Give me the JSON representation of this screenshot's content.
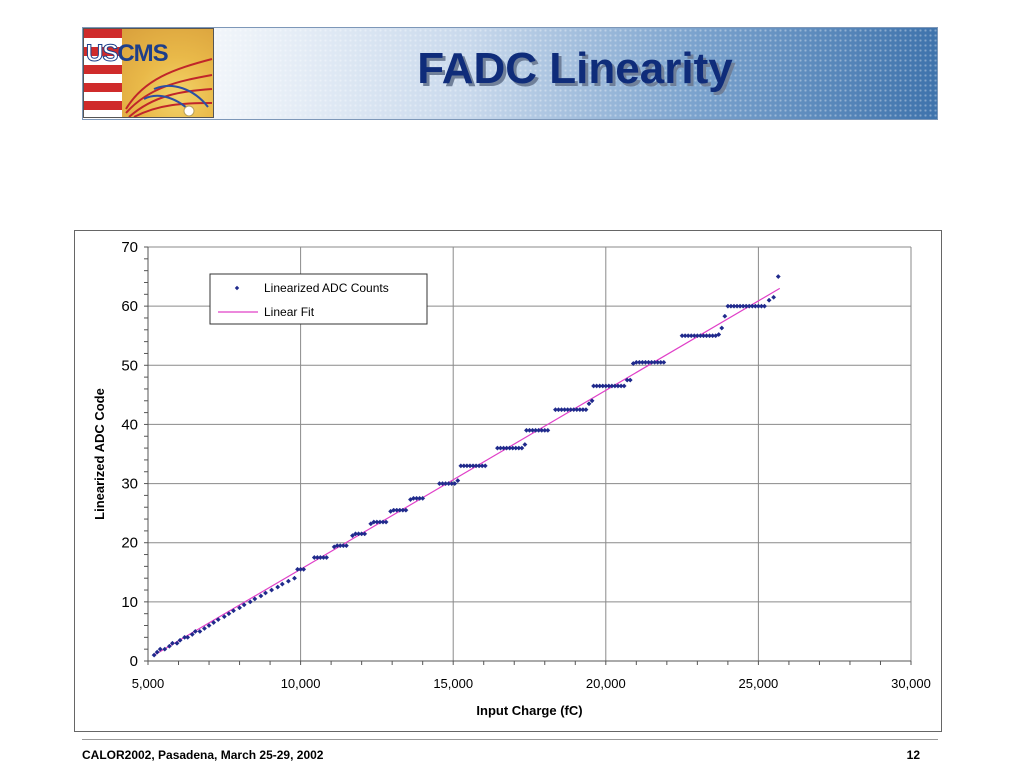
{
  "header": {
    "title": "FADC Linearity",
    "logo_text_a": "US",
    "logo_text_b": "CMS"
  },
  "footer": {
    "event": "CALOR2002, Pasadena, March 25-29, 2002",
    "page_number": "12"
  },
  "colors": {
    "points": "#1f2a8c",
    "fit_line": "#e040c8",
    "grid": "#8a8a8a",
    "title": "#0f2c7a"
  },
  "chart_data": {
    "type": "scatter",
    "title": "",
    "xlabel": "Input Charge (fC)",
    "ylabel": "Linearized ADC Code",
    "xlim": [
      5000,
      30000
    ],
    "ylim": [
      0,
      70
    ],
    "xticks": [
      5000,
      10000,
      15000,
      20000,
      25000,
      30000
    ],
    "xtick_labels": [
      "5,000",
      "10,000",
      "15,000",
      "20,000",
      "25,000",
      "30,000"
    ],
    "yticks": [
      0,
      10,
      20,
      30,
      40,
      50,
      60,
      70
    ],
    "ytick_labels": [
      "0",
      "10",
      "20",
      "30",
      "40",
      "50",
      "60",
      "70"
    ],
    "grid": true,
    "legend_position": "top-left",
    "series": [
      {
        "name": "Linearized ADC Counts",
        "kind": "markers",
        "points": [
          [
            5200,
            1
          ],
          [
            5300,
            1.5
          ],
          [
            5400,
            2
          ],
          [
            5550,
            2
          ],
          [
            5700,
            2.5
          ],
          [
            5800,
            3
          ],
          [
            5950,
            3
          ],
          [
            6050,
            3.5
          ],
          [
            6200,
            4
          ],
          [
            6300,
            4
          ],
          [
            6450,
            4.5
          ],
          [
            6550,
            5
          ],
          [
            6700,
            5
          ],
          [
            6850,
            5.5
          ],
          [
            7000,
            6
          ],
          [
            7150,
            6.5
          ],
          [
            7300,
            7
          ],
          [
            7500,
            7.5
          ],
          [
            7650,
            8
          ],
          [
            7800,
            8.5
          ],
          [
            8000,
            9
          ],
          [
            8150,
            9.5
          ],
          [
            8350,
            10
          ],
          [
            8500,
            10.5
          ],
          [
            8700,
            11
          ],
          [
            8850,
            11.5
          ],
          [
            9050,
            12
          ],
          [
            9250,
            12.5
          ],
          [
            9400,
            13
          ],
          [
            9600,
            13.5
          ],
          [
            9800,
            14
          ],
          [
            9900,
            15.5
          ],
          [
            10000,
            15.5
          ],
          [
            10100,
            15.5
          ],
          [
            10450,
            17.5
          ],
          [
            10550,
            17.5
          ],
          [
            10650,
            17.5
          ],
          [
            10750,
            17.5
          ],
          [
            10850,
            17.5
          ],
          [
            11100,
            19.3
          ],
          [
            11200,
            19.5
          ],
          [
            11300,
            19.5
          ],
          [
            11400,
            19.5
          ],
          [
            11500,
            19.5
          ],
          [
            11700,
            21.2
          ],
          [
            11800,
            21.5
          ],
          [
            11900,
            21.5
          ],
          [
            12000,
            21.5
          ],
          [
            12100,
            21.5
          ],
          [
            12300,
            23.2
          ],
          [
            12400,
            23.5
          ],
          [
            12500,
            23.5
          ],
          [
            12600,
            23.5
          ],
          [
            12700,
            23.5
          ],
          [
            12800,
            23.5
          ],
          [
            12950,
            25.3
          ],
          [
            13050,
            25.5
          ],
          [
            13150,
            25.5
          ],
          [
            13250,
            25.5
          ],
          [
            13350,
            25.5
          ],
          [
            13450,
            25.5
          ],
          [
            13600,
            27.3
          ],
          [
            13700,
            27.5
          ],
          [
            13800,
            27.5
          ],
          [
            13900,
            27.5
          ],
          [
            14000,
            27.5
          ],
          [
            14550,
            30
          ],
          [
            14650,
            30
          ],
          [
            14750,
            30
          ],
          [
            14850,
            30
          ],
          [
            14950,
            30
          ],
          [
            15050,
            30
          ],
          [
            15150,
            30.5
          ],
          [
            15250,
            33
          ],
          [
            15350,
            33
          ],
          [
            15450,
            33
          ],
          [
            15550,
            33
          ],
          [
            15650,
            33
          ],
          [
            15750,
            33
          ],
          [
            15850,
            33
          ],
          [
            15950,
            33
          ],
          [
            16050,
            33
          ],
          [
            16450,
            36
          ],
          [
            16550,
            36
          ],
          [
            16650,
            36
          ],
          [
            16750,
            36
          ],
          [
            16850,
            36
          ],
          [
            16950,
            36
          ],
          [
            17050,
            36
          ],
          [
            17150,
            36
          ],
          [
            17250,
            36
          ],
          [
            17350,
            36.6
          ],
          [
            17400,
            39
          ],
          [
            17500,
            39
          ],
          [
            17600,
            39
          ],
          [
            17700,
            39
          ],
          [
            17800,
            39
          ],
          [
            17900,
            39
          ],
          [
            18000,
            39
          ],
          [
            18100,
            39
          ],
          [
            18350,
            42.5
          ],
          [
            18450,
            42.5
          ],
          [
            18550,
            42.5
          ],
          [
            18650,
            42.5
          ],
          [
            18750,
            42.5
          ],
          [
            18850,
            42.5
          ],
          [
            18950,
            42.5
          ],
          [
            19050,
            42.5
          ],
          [
            19150,
            42.5
          ],
          [
            19250,
            42.5
          ],
          [
            19350,
            42.5
          ],
          [
            19450,
            43.5
          ],
          [
            19550,
            44
          ],
          [
            19600,
            46.5
          ],
          [
            19700,
            46.5
          ],
          [
            19800,
            46.5
          ],
          [
            19900,
            46.5
          ],
          [
            20000,
            46.5
          ],
          [
            20100,
            46.5
          ],
          [
            20200,
            46.5
          ],
          [
            20300,
            46.5
          ],
          [
            20400,
            46.5
          ],
          [
            20500,
            46.5
          ],
          [
            20600,
            46.5
          ],
          [
            20700,
            47.5
          ],
          [
            20800,
            47.5
          ],
          [
            20900,
            50.3
          ],
          [
            21000,
            50.5
          ],
          [
            21100,
            50.5
          ],
          [
            21200,
            50.5
          ],
          [
            21300,
            50.5
          ],
          [
            21400,
            50.5
          ],
          [
            21500,
            50.5
          ],
          [
            21600,
            50.5
          ],
          [
            21700,
            50.5
          ],
          [
            21800,
            50.5
          ],
          [
            21900,
            50.5
          ],
          [
            22500,
            55
          ],
          [
            22600,
            55
          ],
          [
            22700,
            55
          ],
          [
            22800,
            55
          ],
          [
            22900,
            55
          ],
          [
            23000,
            55
          ],
          [
            23100,
            55
          ],
          [
            23200,
            55
          ],
          [
            23300,
            55
          ],
          [
            23400,
            55
          ],
          [
            23500,
            55
          ],
          [
            23600,
            55
          ],
          [
            23700,
            55.2
          ],
          [
            23800,
            56.3
          ],
          [
            23900,
            58.3
          ],
          [
            24000,
            60
          ],
          [
            24100,
            60
          ],
          [
            24200,
            60
          ],
          [
            24300,
            60
          ],
          [
            24400,
            60
          ],
          [
            24500,
            60
          ],
          [
            24600,
            60
          ],
          [
            24700,
            60
          ],
          [
            24800,
            60
          ],
          [
            24900,
            60
          ],
          [
            25000,
            60
          ],
          [
            25100,
            60
          ],
          [
            25200,
            60
          ],
          [
            25350,
            61
          ],
          [
            25500,
            61.5
          ],
          [
            25650,
            65
          ]
        ]
      },
      {
        "name": "Linear Fit",
        "kind": "line",
        "points": [
          [
            5200,
            1
          ],
          [
            25700,
            63
          ]
        ]
      }
    ]
  }
}
